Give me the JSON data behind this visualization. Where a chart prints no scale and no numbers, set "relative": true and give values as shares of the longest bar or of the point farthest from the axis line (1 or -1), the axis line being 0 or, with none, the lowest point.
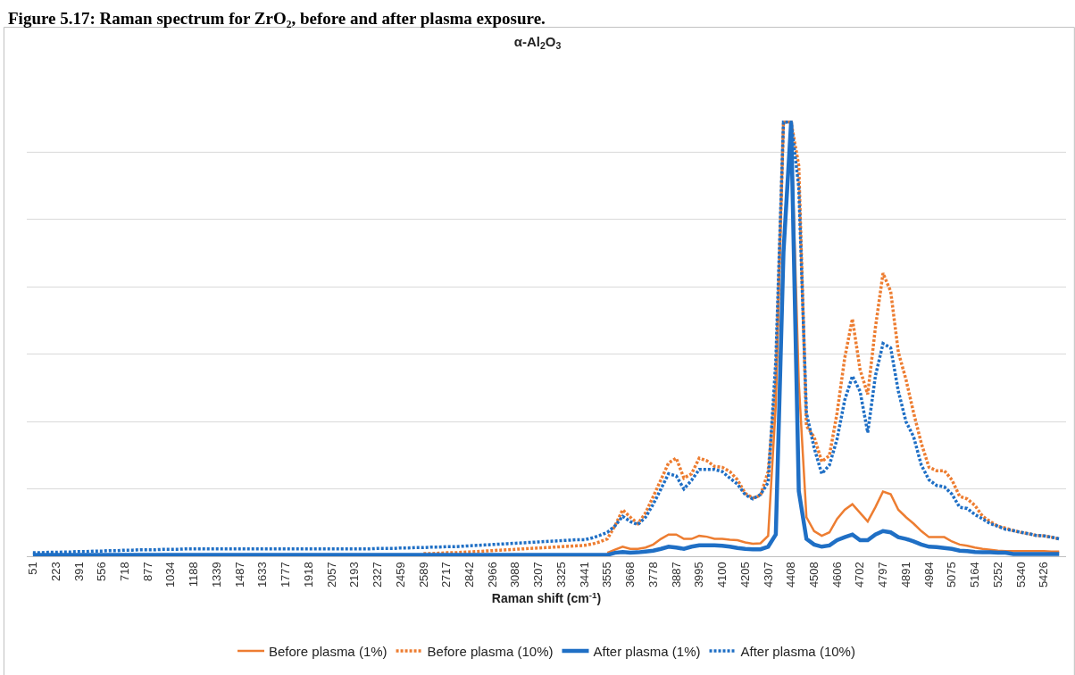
{
  "chart_data": {
    "type": "line",
    "relative": true,
    "title": "α-Al$_{2}$O$_{3}$",
    "xlabel": "Raman shift (cm$^{-1}$)",
    "annotations": [
      "Figure 5.17: Raman spectrum for ZrO₂, before and after plasma exposure."
    ],
    "grid": "y",
    "legend": "bottom",
    "marker": "none",
    "categories": [
      "51",
      null,
      null,
      "223",
      null,
      null,
      "391",
      null,
      null,
      "556",
      null,
      null,
      "718",
      null,
      null,
      "877",
      null,
      null,
      "1034",
      null,
      null,
      "1188",
      null,
      null,
      "1339",
      null,
      null,
      "1487",
      null,
      null,
      "1633",
      null,
      null,
      "1777",
      null,
      null,
      "1918",
      null,
      null,
      "2057",
      null,
      null,
      "2193",
      null,
      null,
      "2327",
      null,
      null,
      "2459",
      null,
      null,
      "2589",
      null,
      null,
      "2717",
      null,
      null,
      "2842",
      null,
      null,
      "2966",
      null,
      null,
      "3088",
      null,
      null,
      "3207",
      null,
      null,
      "3325",
      null,
      null,
      "3441",
      null,
      null,
      "3555",
      null,
      null,
      "3668",
      null,
      null,
      "3778",
      null,
      null,
      "3887",
      null,
      null,
      "3995",
      null,
      null,
      "4100",
      null,
      null,
      "4205",
      null,
      null,
      "4307",
      null,
      null,
      "4408",
      null,
      null,
      "4508",
      null,
      null,
      "4606",
      null,
      null,
      "4702",
      null,
      null,
      "4797",
      null,
      null,
      "4891",
      null,
      null,
      "4984",
      null,
      null,
      "5075",
      null,
      null,
      "5164",
      null,
      null,
      "5252",
      null,
      null,
      "5340",
      null,
      null,
      "5426",
      null,
      null
    ],
    "series": [
      {
        "name": "Before plasma (1%)",
        "color": "#ed7d31",
        "line_style": "solid",
        "values": [
          null,
          null,
          null,
          null,
          null,
          null,
          null,
          null,
          null,
          null,
          null,
          null,
          null,
          null,
          null,
          null,
          null,
          null,
          null,
          null,
          null,
          null,
          null,
          null,
          null,
          null,
          null,
          null,
          null,
          null,
          null,
          null,
          null,
          null,
          null,
          null,
          null,
          null,
          null,
          null,
          null,
          null,
          null,
          null,
          null,
          null,
          null,
          null,
          null,
          null,
          null,
          null,
          null,
          null,
          null,
          null,
          null,
          null,
          null,
          null,
          null,
          null,
          null,
          null,
          null,
          null,
          null,
          null,
          null,
          null,
          null,
          null,
          null,
          null,
          null,
          0.008,
          0.015,
          0.022,
          0.017,
          0.017,
          0.02,
          0.027,
          0.04,
          0.05,
          0.05,
          0.04,
          0.04,
          0.047,
          0.045,
          0.04,
          0.04,
          0.038,
          0.037,
          0.032,
          0.029,
          0.03,
          0.047,
          0.35,
          1,
          1,
          0.4,
          0.09,
          0.058,
          0.047,
          0.055,
          0.086,
          0.107,
          0.12,
          0.1,
          0.08,
          0.113,
          0.149,
          0.143,
          0.107,
          0.09,
          0.075,
          0.058,
          0.044,
          0.044,
          0.044,
          0.034,
          0.027,
          0.024,
          0.02,
          0.017,
          0.015,
          0.013,
          0.012,
          0.012,
          0.012,
          0.012,
          0.012,
          0.012,
          0.011,
          0.011
        ]
      },
      {
        "name": "Before plasma (10%)",
        "color": "#ed7d31",
        "line_style": "dotted",
        "values": [
          null,
          null,
          null,
          null,
          null,
          null,
          null,
          null,
          null,
          null,
          null,
          null,
          null,
          null,
          null,
          null,
          null,
          null,
          null,
          null,
          null,
          null,
          null,
          null,
          null,
          null,
          null,
          null,
          null,
          null,
          null,
          null,
          null,
          null,
          null,
          null,
          null,
          null,
          null,
          null,
          null,
          null,
          null,
          null,
          null,
          null,
          null,
          null,
          null,
          null,
          null,
          0.006,
          0.006,
          0.007,
          0.008,
          0.008,
          0.009,
          0.01,
          0.011,
          0.012,
          0.013,
          0.014,
          0.015,
          0.016,
          0.017,
          0.018,
          0.019,
          0.02,
          0.021,
          0.022,
          0.023,
          0.024,
          0.025,
          0.028,
          0.033,
          0.04,
          0.07,
          0.107,
          0.09,
          0.075,
          0.1,
          0.138,
          0.176,
          0.215,
          0.226,
          0.18,
          0.19,
          0.226,
          0.22,
          0.207,
          0.205,
          0.195,
          0.176,
          0.145,
          0.134,
          0.14,
          0.195,
          0.4,
          1,
          1,
          0.9,
          0.3,
          0.275,
          0.218,
          0.232,
          0.33,
          0.457,
          0.547,
          0.43,
          0.373,
          0.526,
          0.652,
          0.61,
          0.47,
          0.407,
          0.33,
          0.26,
          0.205,
          0.197,
          0.197,
          0.176,
          0.138,
          0.132,
          0.117,
          0.092,
          0.08,
          0.069,
          0.065,
          0.059,
          0.055,
          0.052,
          0.048,
          0.047,
          0.044,
          0.04
        ]
      },
      {
        "name": "After plasma (1%)",
        "color": "#1f6fc5",
        "line_style": "solid",
        "values": [
          0.003,
          0.003,
          0.003,
          0.003,
          0.003,
          0.003,
          0.003,
          0.003,
          0.003,
          0.003,
          0.003,
          0.003,
          0.003,
          0.003,
          0.003,
          0.003,
          0.003,
          0.003,
          0.003,
          0.003,
          0.003,
          0.003,
          0.003,
          0.003,
          0.003,
          0.003,
          0.003,
          0.003,
          0.003,
          0.003,
          0.003,
          0.003,
          0.003,
          0.003,
          0.003,
          0.003,
          0.003,
          0.003,
          0.003,
          0.003,
          0.003,
          0.003,
          0.003,
          0.003,
          0.003,
          0.003,
          0.003,
          0.003,
          0.003,
          0.003,
          0.003,
          0.003,
          0.003,
          0.003,
          0.003,
          0.003,
          0.003,
          0.003,
          0.003,
          0.003,
          0.003,
          0.003,
          0.003,
          0.003,
          0.003,
          0.003,
          0.003,
          0.003,
          0.003,
          0.003,
          0.003,
          0.003,
          0.003,
          0.003,
          0.003,
          0.003,
          0.008,
          0.01,
          0.008,
          0.009,
          0.011,
          0.013,
          0.017,
          0.022,
          0.02,
          0.017,
          0.022,
          0.025,
          0.025,
          0.025,
          0.024,
          0.022,
          0.019,
          0.017,
          0.016,
          0.016,
          0.022,
          0.05,
          0.7,
          1,
          0.15,
          0.04,
          0.027,
          0.022,
          0.025,
          0.037,
          0.044,
          0.05,
          0.037,
          0.037,
          0.05,
          0.058,
          0.055,
          0.044,
          0.04,
          0.034,
          0.027,
          0.022,
          0.021,
          0.019,
          0.017,
          0.013,
          0.012,
          0.01,
          0.009,
          0.009,
          0.008,
          0.008,
          0.005,
          0.005,
          0.005,
          0.005,
          0.005,
          0.005,
          0.005
        ]
      },
      {
        "name": "After plasma (10%)",
        "color": "#1f6fc5",
        "line_style": "dotted",
        "values": [
          0.008,
          0.008,
          0.009,
          0.009,
          0.01,
          0.01,
          0.011,
          0.011,
          0.012,
          0.012,
          0.013,
          0.013,
          0.014,
          0.014,
          0.015,
          0.015,
          0.015,
          0.016,
          0.016,
          0.016,
          0.017,
          0.017,
          0.017,
          0.017,
          0.017,
          0.017,
          0.017,
          0.017,
          0.017,
          0.017,
          0.017,
          0.017,
          0.017,
          0.017,
          0.017,
          0.017,
          0.017,
          0.017,
          0.017,
          0.017,
          0.017,
          0.017,
          0.017,
          0.017,
          0.017,
          0.018,
          0.018,
          0.018,
          0.019,
          0.019,
          0.02,
          0.02,
          0.021,
          0.021,
          0.022,
          0.022,
          0.023,
          0.024,
          0.025,
          0.026,
          0.027,
          0.028,
          0.029,
          0.03,
          0.031,
          0.032,
          0.033,
          0.034,
          0.035,
          0.036,
          0.037,
          0.038,
          0.038,
          0.042,
          0.048,
          0.055,
          0.07,
          0.092,
          0.08,
          0.073,
          0.09,
          0.12,
          0.155,
          0.19,
          0.185,
          0.155,
          0.175,
          0.2,
          0.2,
          0.2,
          0.195,
          0.18,
          0.166,
          0.142,
          0.132,
          0.142,
          0.17,
          0.45,
          1,
          1,
          0.85,
          0.33,
          0.25,
          0.19,
          0.21,
          0.27,
          0.36,
          0.415,
          0.38,
          0.285,
          0.415,
          0.49,
          0.48,
          0.38,
          0.31,
          0.275,
          0.21,
          0.176,
          0.163,
          0.16,
          0.143,
          0.113,
          0.11,
          0.096,
          0.086,
          0.075,
          0.069,
          0.062,
          0.059,
          0.055,
          0.052,
          0.048,
          0.047,
          0.044,
          0.04
        ]
      }
    ]
  }
}
